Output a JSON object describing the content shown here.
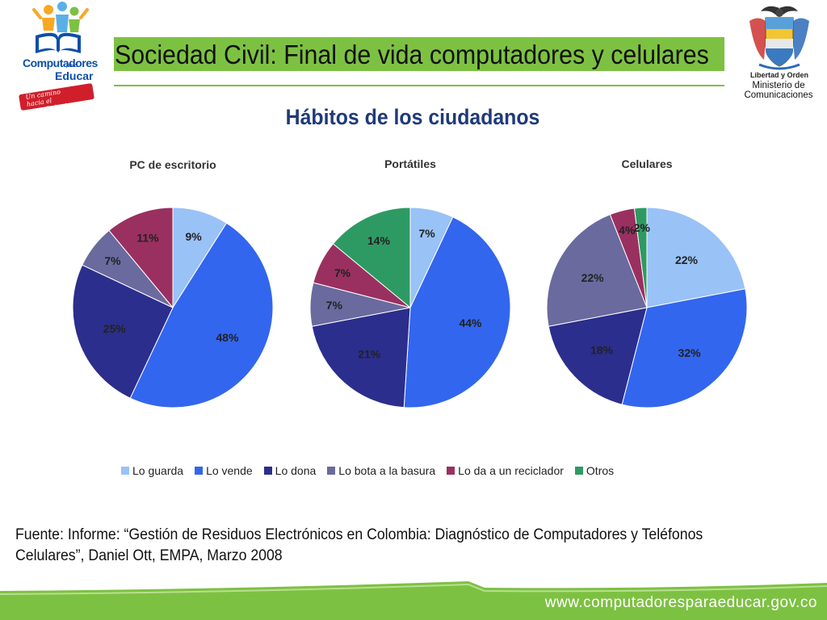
{
  "logo_left": {
    "word1": "Computadores",
    "para": "para",
    "word2": "Educar",
    "slogan_line1": "Un camino",
    "slogan_line2": "hacia el conocimiento"
  },
  "header": {
    "title": "Sociedad Civil: Final de vida computadores y celulares",
    "accent_color": "#7dc142"
  },
  "emblem": {
    "motto": "Libertad y Orden",
    "ministry_line1": "Ministerio de",
    "ministry_line2": "Comunicaciones"
  },
  "subtitle": "Hábitos de los ciudadanos",
  "chart_data": [
    {
      "type": "pie",
      "title": "PC de escritorio",
      "categories": [
        "Lo guarda",
        "Lo vende",
        "Lo dona",
        "Lo bota a la basura",
        "Lo da a un reciclador",
        "Otros"
      ],
      "values": [
        9,
        48,
        25,
        7,
        11,
        0
      ],
      "labels": [
        "9%",
        "48%",
        "25%",
        "7%",
        "11%",
        ""
      ]
    },
    {
      "type": "pie",
      "title": "Portátiles",
      "categories": [
        "Lo guarda",
        "Lo vende",
        "Lo dona",
        "Lo bota a la basura",
        "Lo da a un reciclador",
        "Otros"
      ],
      "values": [
        7,
        44,
        21,
        7,
        7,
        14
      ],
      "labels": [
        "7%",
        "44%",
        "21%",
        "7%",
        "7%",
        "14%"
      ]
    },
    {
      "type": "pie",
      "title": "Celulares",
      "categories": [
        "Lo guarda",
        "Lo vende",
        "Lo dona",
        "Lo bota a la basura",
        "Lo da a un reciclador",
        "Otros"
      ],
      "values": [
        22,
        32,
        18,
        22,
        4,
        2
      ],
      "labels": [
        "22%",
        "32%",
        "18%",
        "22%",
        "4%",
        "2%"
      ]
    }
  ],
  "legend": {
    "items": [
      {
        "label": "Lo guarda",
        "color": "#99c2f7"
      },
      {
        "label": "Lo vende",
        "color": "#3366ee"
      },
      {
        "label": "Lo dona",
        "color": "#2b2e8c"
      },
      {
        "label": "Lo bota a la basura",
        "color": "#6a6a9e"
      },
      {
        "label": "Lo da a un reciclador",
        "color": "#9a3060"
      },
      {
        "label": "Otros",
        "color": "#2e9a63"
      }
    ]
  },
  "source": {
    "line1": "Fuente: Informe: “Gestión de Residuos Electrónicos en Colombia: Diagnóstico de Computadores y Teléfonos",
    "line2": "Celulares”, Daniel Ott, EMPA, Marzo 2008"
  },
  "footer": {
    "url": "www.computadoresparaeducar.gov.co",
    "band_color": "#7dc142"
  }
}
